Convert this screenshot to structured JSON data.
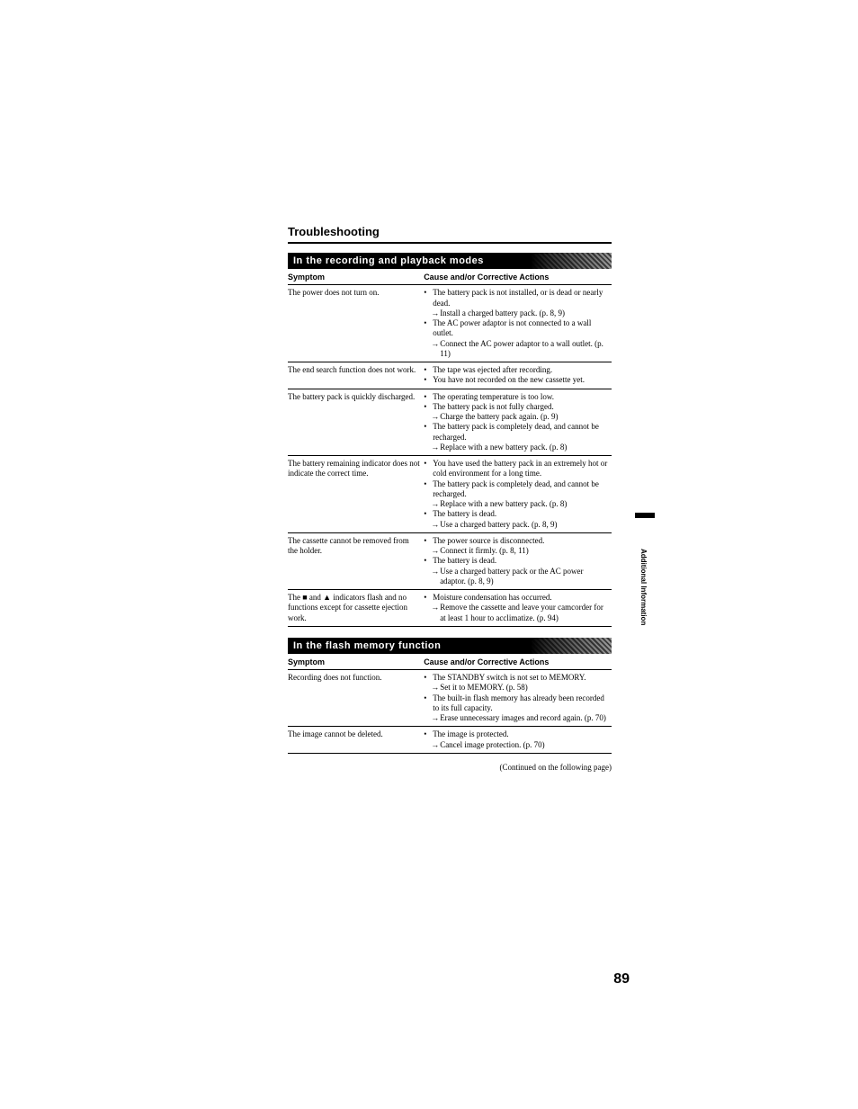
{
  "page_title": "Troubleshooting",
  "page_number": "89",
  "side_label": "Additional Information",
  "continued_text": "(Continued on the following page)",
  "sections": [
    {
      "header": "In the recording and playback modes",
      "col_symptom": "Symptom",
      "col_cause": "Cause and/or Corrective Actions",
      "rows": [
        {
          "symptom": "The power does not turn on.",
          "causes": [
            {
              "type": "bullet",
              "text": "The battery pack is not installed, or is dead or nearly dead."
            },
            {
              "type": "arrow",
              "text": "Install a charged battery pack. (p. 8, 9)"
            },
            {
              "type": "bullet",
              "text": "The AC power adaptor is not connected to a wall outlet."
            },
            {
              "type": "arrow",
              "text": "Connect the AC power adaptor to a wall outlet. (p. 11)"
            }
          ]
        },
        {
          "symptom": "The end search function does not work.",
          "causes": [
            {
              "type": "bullet",
              "text": "The tape was ejected after recording."
            },
            {
              "type": "bullet",
              "text": "You have not recorded on the new cassette yet."
            }
          ]
        },
        {
          "symptom": "The battery pack is quickly discharged.",
          "causes": [
            {
              "type": "bullet",
              "text": "The operating temperature is too low."
            },
            {
              "type": "bullet",
              "text": "The battery pack is not fully charged."
            },
            {
              "type": "arrow",
              "text": "Charge the battery pack again. (p. 9)"
            },
            {
              "type": "bullet",
              "text": "The battery pack is completely dead, and cannot be recharged."
            },
            {
              "type": "arrow",
              "text": "Replace with a new battery pack. (p. 8)"
            }
          ]
        },
        {
          "symptom": "The battery remaining indicator does not indicate the correct time.",
          "causes": [
            {
              "type": "bullet",
              "text": "You have used the battery pack in an extremely hot or cold environment for a long time."
            },
            {
              "type": "bullet",
              "text": "The battery pack is completely dead, and cannot be recharged."
            },
            {
              "type": "arrow",
              "text": "Replace with a new battery pack. (p. 8)"
            },
            {
              "type": "bullet",
              "text": "The battery is dead."
            },
            {
              "type": "arrow",
              "text": "Use a charged battery pack. (p. 8, 9)"
            }
          ]
        },
        {
          "symptom": "The cassette cannot be removed from the holder.",
          "causes": [
            {
              "type": "bullet",
              "text": "The power source is disconnected."
            },
            {
              "type": "arrow",
              "text": "Connect it firmly. (p. 8, 11)"
            },
            {
              "type": "bullet",
              "text": "The battery is dead."
            },
            {
              "type": "arrow",
              "text": "Use a charged battery pack or the AC power adaptor. (p. 8, 9)"
            }
          ]
        },
        {
          "symptom": "The ■ and ▲ indicators flash and no functions except for cassette ejection work.",
          "causes": [
            {
              "type": "bullet",
              "text": "Moisture condensation has occurred."
            },
            {
              "type": "arrow",
              "text": "Remove the cassette and leave your camcorder for at least 1 hour to acclimatize. (p. 94)"
            }
          ]
        }
      ]
    },
    {
      "header": "In the flash memory function",
      "col_symptom": "Symptom",
      "col_cause": "Cause and/or Corrective Actions",
      "rows": [
        {
          "symptom": "Recording does not function.",
          "causes": [
            {
              "type": "bullet",
              "text": "The STANDBY switch is not set to MEMORY."
            },
            {
              "type": "arrow",
              "text": "Set it to MEMORY. (p. 58)"
            },
            {
              "type": "bullet",
              "text": "The built-in flash memory has already been recorded to its full capacity."
            },
            {
              "type": "arrow",
              "text": "Erase unnecessary images and record again. (p. 70)"
            }
          ]
        },
        {
          "symptom": "The image cannot be deleted.",
          "causes": [
            {
              "type": "bullet",
              "text": "The image is protected."
            },
            {
              "type": "arrow",
              "text": "Cancel image protection. (p. 70)"
            }
          ]
        }
      ]
    }
  ]
}
